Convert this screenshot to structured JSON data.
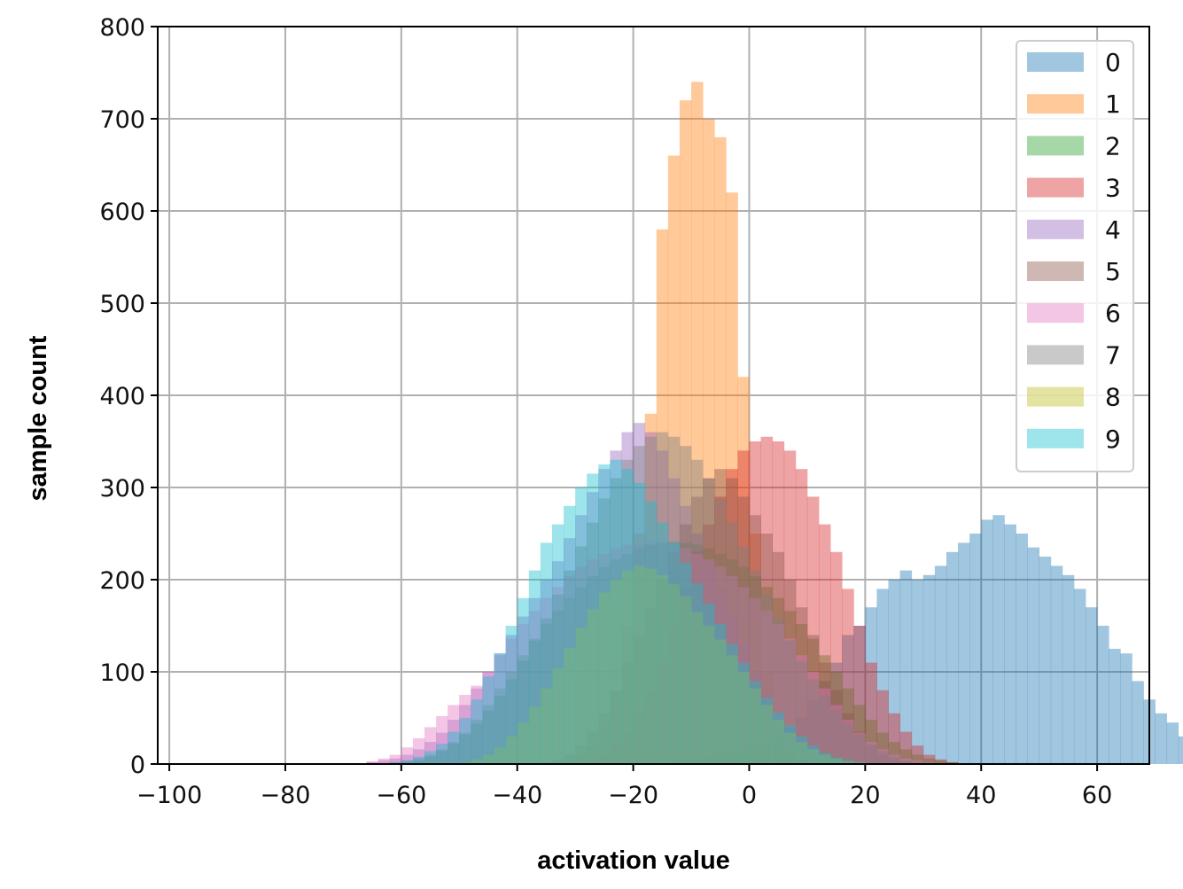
{
  "chart_data": {
    "type": "histogram",
    "title": "",
    "xlabel": "activation value",
    "ylabel": "sample count",
    "xlim": [
      -102,
      69
    ],
    "ylim": [
      0,
      800
    ],
    "xticks": [
      -100,
      -80,
      -60,
      -40,
      -20,
      0,
      20,
      40,
      60
    ],
    "xtick_labels": [
      "−100",
      "−80",
      "−60",
      "−40",
      "−20",
      "0",
      "20",
      "40",
      "60"
    ],
    "yticks": [
      0,
      100,
      200,
      300,
      400,
      500,
      600,
      700,
      800
    ],
    "ytick_labels": [
      "0",
      "100",
      "200",
      "300",
      "400",
      "500",
      "600",
      "700",
      "800"
    ],
    "grid": true,
    "legend_position": "top-right",
    "bin_width": 2,
    "series": [
      {
        "name": "0",
        "color": "#1f77b4",
        "start": -20,
        "values": [
          2,
          2,
          3,
          4,
          5,
          7,
          9,
          12,
          15,
          18,
          20,
          25,
          30,
          40,
          50,
          70,
          90,
          110,
          140,
          150,
          170,
          190,
          200,
          210,
          200,
          205,
          215,
          230,
          240,
          250,
          265,
          270,
          260,
          250,
          235,
          225,
          215,
          205,
          190,
          170,
          150,
          125,
          120,
          90,
          70,
          55,
          45,
          30,
          20,
          15,
          12,
          8,
          5,
          3,
          2,
          1
        ]
      },
      {
        "name": "1",
        "color": "#ff7f0e",
        "start": -34,
        "values": [
          2,
          5,
          10,
          20,
          40,
          80,
          150,
          250,
          380,
          580,
          660,
          720,
          740,
          700,
          680,
          620,
          420,
          250,
          100,
          40,
          15,
          5,
          2
        ]
      },
      {
        "name": "2",
        "color": "#2ca02c",
        "start": -62,
        "values": [
          2,
          4,
          6,
          10,
          16,
          24,
          34,
          48,
          64,
          82,
          100,
          118,
          136,
          152,
          166,
          180,
          192,
          204,
          214,
          222,
          228,
          234,
          238,
          240,
          241,
          240,
          238,
          234,
          228,
          222,
          214,
          204,
          192,
          180,
          166,
          152,
          136,
          118,
          100,
          82,
          64,
          48,
          34,
          24,
          16,
          10,
          6,
          4,
          2
        ]
      },
      {
        "name": "3",
        "color": "#d62728",
        "start": -30,
        "values": [
          2,
          5,
          10,
          20,
          35,
          55,
          80,
          110,
          150,
          190,
          230,
          260,
          290,
          320,
          340,
          350,
          355,
          350,
          340,
          320,
          290,
          260,
          230,
          190,
          150,
          110,
          80,
          55,
          35,
          20,
          10,
          5,
          2
        ]
      },
      {
        "name": "4",
        "color": "#9467bd",
        "start": -66,
        "values": [
          2,
          4,
          6,
          10,
          16,
          24,
          34,
          48,
          64,
          82,
          100,
          120,
          140,
          160,
          180,
          200,
          220,
          245,
          270,
          295,
          320,
          340,
          360,
          370,
          360,
          340,
          310,
          280,
          250,
          220,
          190,
          160,
          130,
          100,
          75,
          55,
          40,
          28,
          18,
          10,
          6,
          3,
          1
        ]
      },
      {
        "name": "5",
        "color": "#8c564b",
        "start": -36,
        "values": [
          2,
          5,
          10,
          20,
          35,
          55,
          80,
          110,
          140,
          170,
          200,
          230,
          260,
          290,
          310,
          320,
          310,
          290,
          270,
          250,
          230,
          200,
          170,
          140,
          110,
          80,
          55,
          35,
          20,
          10,
          5,
          2
        ]
      },
      {
        "name": "6",
        "color": "#e377c2",
        "start": -66,
        "values": [
          3,
          6,
          10,
          18,
          28,
          40,
          52,
          64,
          75,
          85,
          100,
          118,
          136,
          152,
          166,
          180,
          192,
          204,
          214,
          222,
          228,
          234,
          238,
          240,
          241,
          240,
          238,
          234,
          228,
          222,
          214,
          204,
          192,
          180,
          166,
          152,
          136,
          118,
          100,
          82,
          64,
          48,
          34,
          24,
          16,
          10,
          6,
          4,
          2
        ]
      },
      {
        "name": "7",
        "color": "#7f7f7f",
        "start": -60,
        "values": [
          2,
          4,
          8,
          14,
          22,
          32,
          44,
          58,
          74,
          92,
          112,
          134,
          158,
          184,
          210,
          236,
          262,
          288,
          310,
          330,
          345,
          355,
          360,
          355,
          345,
          330,
          310,
          288,
          262,
          236,
          210,
          184,
          158,
          134,
          112,
          92,
          74,
          58,
          44,
          32,
          22,
          14,
          8,
          4,
          2
        ]
      },
      {
        "name": "8",
        "color": "#bcbd22",
        "start": -50,
        "values": [
          2,
          5,
          10,
          18,
          30,
          45,
          62,
          82,
          104,
          126,
          148,
          168,
          186,
          200,
          210,
          215,
          212,
          205,
          195,
          182,
          165,
          150,
          135,
          118,
          100,
          82,
          64,
          48,
          34,
          24,
          16,
          10,
          6,
          3,
          2
        ]
      },
      {
        "name": "9",
        "color": "#17becf",
        "start": -62,
        "values": [
          2,
          4,
          8,
          14,
          22,
          35,
          50,
          70,
          95,
          120,
          150,
          180,
          210,
          240,
          260,
          280,
          300,
          315,
          325,
          330,
          320,
          305,
          285,
          262,
          240,
          218,
          196,
          174,
          152,
          130,
          110,
          90,
          72,
          56,
          42,
          30,
          20,
          12,
          7,
          4,
          2
        ]
      }
    ]
  }
}
